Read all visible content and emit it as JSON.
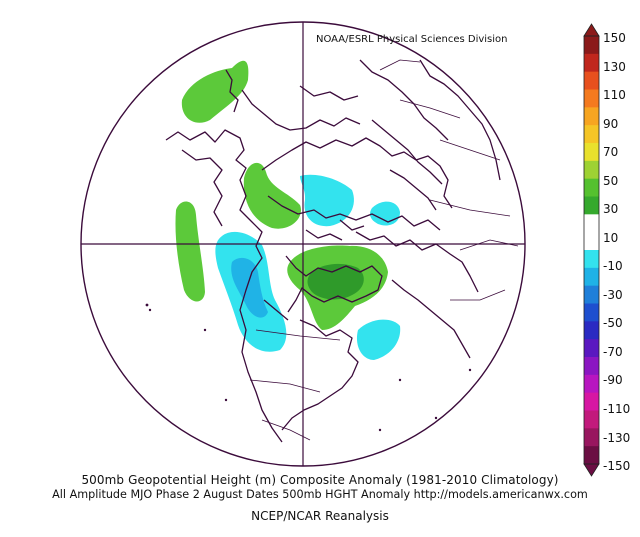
{
  "credit": "NOAA/ESRL Physical Sciences Division",
  "caption_line1": "500mb Geopotential Height (m) Composite Anomaly (1981-2010 Climatology)",
  "caption_line2": "All Amplitude MJO Phase 2 August Dates 500mb HGHT Anomaly http://models.americanwx.com",
  "caption_line3": "NCEP/NCAR Reanalysis",
  "colorbar": {
    "labels": [
      "150",
      "130",
      "110",
      "90",
      "70",
      "50",
      "30",
      "10",
      "-10",
      "-30",
      "-50",
      "-70",
      "-90",
      "-110",
      "-130",
      "-150"
    ],
    "colors": [
      "#8b1a1a",
      "#c0271d",
      "#e8501e",
      "#f47a1f",
      "#f7a521",
      "#f5c526",
      "#e9e12d",
      "#9ed233",
      "#55c12f",
      "#35a92d",
      "#ffffff",
      "#ffffff",
      "#33e2ee",
      "#1fb2e6",
      "#1f7fd9",
      "#1e4fcf",
      "#2a2ac2",
      "#5a18c0",
      "#8b16c2",
      "#b816c0",
      "#d717a3",
      "#c21a7c",
      "#98165f",
      "#6b0e43"
    ]
  },
  "colors": {
    "coast": "#3b0b3b",
    "positive_anomaly": "#5cc93a",
    "positive_anomaly_strong": "#2f9a2a",
    "negative_anomaly": "#33e3ee",
    "negative_anomaly_strong": "#20b3e6"
  }
}
